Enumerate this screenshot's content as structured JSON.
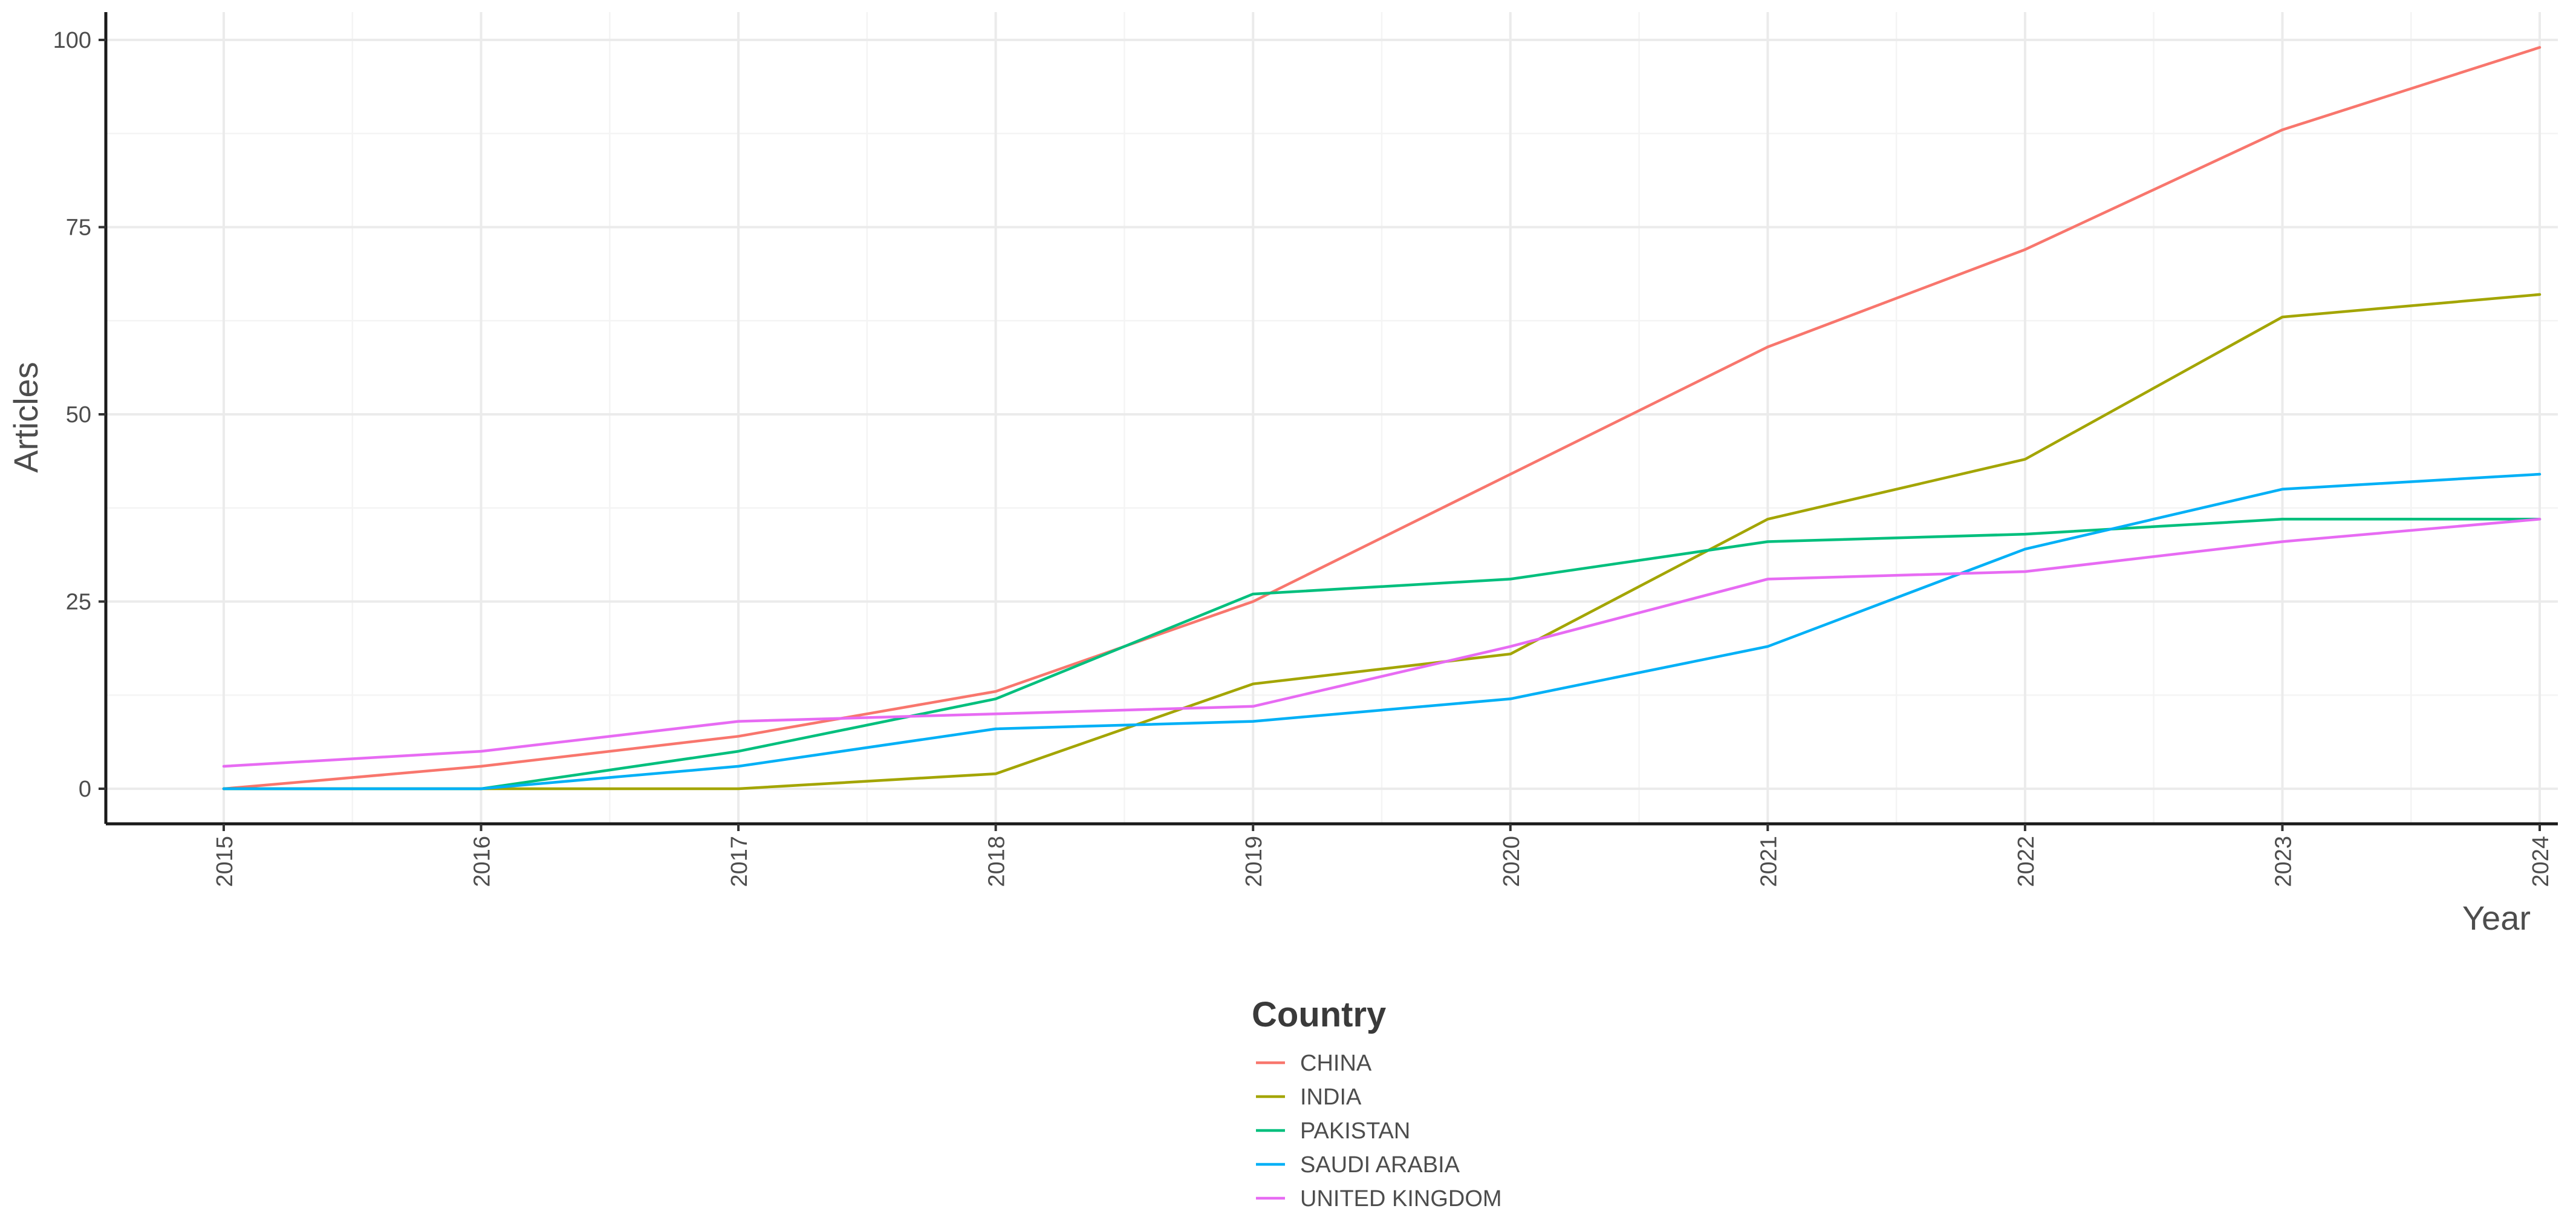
{
  "chart_data": {
    "type": "line",
    "xlabel": "Year",
    "ylabel": "Articles",
    "x": [
      "2015",
      "2016",
      "2017",
      "2018",
      "2019",
      "2020",
      "2021",
      "2022",
      "2023",
      "2024"
    ],
    "ylim": [
      0,
      100
    ],
    "yticks": [
      0,
      25,
      50,
      75,
      100
    ],
    "grid": true,
    "legend": {
      "title": "Country",
      "placement": "bottom"
    },
    "series": [
      {
        "name": "CHINA",
        "color": "#F8766D",
        "values": [
          0,
          3,
          7,
          13,
          25,
          42,
          59,
          72,
          88,
          99
        ]
      },
      {
        "name": "INDIA",
        "color": "#A3A500",
        "values": [
          0,
          0,
          0,
          2,
          14,
          18,
          36,
          44,
          63,
          66
        ]
      },
      {
        "name": "PAKISTAN",
        "color": "#00BF7D",
        "values": [
          0,
          0,
          5,
          12,
          26,
          28,
          33,
          34,
          36,
          36
        ]
      },
      {
        "name": "SAUDI ARABIA",
        "color": "#00B0F6",
        "values": [
          0,
          0,
          3,
          8,
          9,
          12,
          19,
          32,
          40,
          42
        ]
      },
      {
        "name": "UNITED KINGDOM",
        "color": "#E76BF3",
        "values": [
          3,
          5,
          9,
          10,
          11,
          19,
          28,
          29,
          33,
          36
        ]
      }
    ]
  }
}
